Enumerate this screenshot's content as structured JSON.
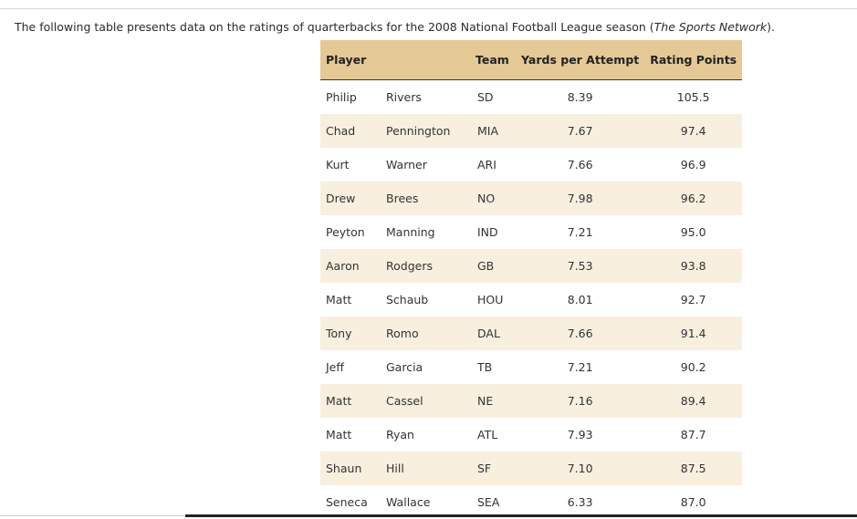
{
  "intro": {
    "text_before": "The following table presents data on the ratings of quarterbacks for the 2008 National Football League season (",
    "source": "The Sports Network",
    "text_after": ")."
  },
  "table": {
    "headers": {
      "player": "Player",
      "team": "Team",
      "ypa": "Yards per Attempt",
      "rating": "Rating Points"
    },
    "rows": [
      {
        "first": "Philip",
        "last": "Rivers",
        "team": "SD",
        "ypa": "8.39",
        "rating": "105.5"
      },
      {
        "first": "Chad",
        "last": "Pennington",
        "team": "MIA",
        "ypa": "7.67",
        "rating": "97.4"
      },
      {
        "first": "Kurt",
        "last": "Warner",
        "team": "ARI",
        "ypa": "7.66",
        "rating": "96.9"
      },
      {
        "first": "Drew",
        "last": "Brees",
        "team": "NO",
        "ypa": "7.98",
        "rating": "96.2"
      },
      {
        "first": "Peyton",
        "last": "Manning",
        "team": "IND",
        "ypa": "7.21",
        "rating": "95.0"
      },
      {
        "first": "Aaron",
        "last": "Rodgers",
        "team": "GB",
        "ypa": "7.53",
        "rating": "93.8"
      },
      {
        "first": "Matt",
        "last": "Schaub",
        "team": "HOU",
        "ypa": "8.01",
        "rating": "92.7"
      },
      {
        "first": "Tony",
        "last": "Romo",
        "team": "DAL",
        "ypa": "7.66",
        "rating": "91.4"
      },
      {
        "first": "Jeff",
        "last": "Garcia",
        "team": "TB",
        "ypa": "7.21",
        "rating": "90.2"
      },
      {
        "first": "Matt",
        "last": "Cassel",
        "team": "NE",
        "ypa": "7.16",
        "rating": "89.4"
      },
      {
        "first": "Matt",
        "last": "Ryan",
        "team": "ATL",
        "ypa": "7.93",
        "rating": "87.7"
      },
      {
        "first": "Shaun",
        "last": "Hill",
        "team": "SF",
        "ypa": "7.10",
        "rating": "87.5"
      },
      {
        "first": "Seneca",
        "last": "Wallace",
        "team": "SEA",
        "ypa": "6.33",
        "rating": "87.0"
      }
    ]
  },
  "colors": {
    "header_bg": "#e4c996",
    "alt_row_bg": "#f8efdf"
  }
}
